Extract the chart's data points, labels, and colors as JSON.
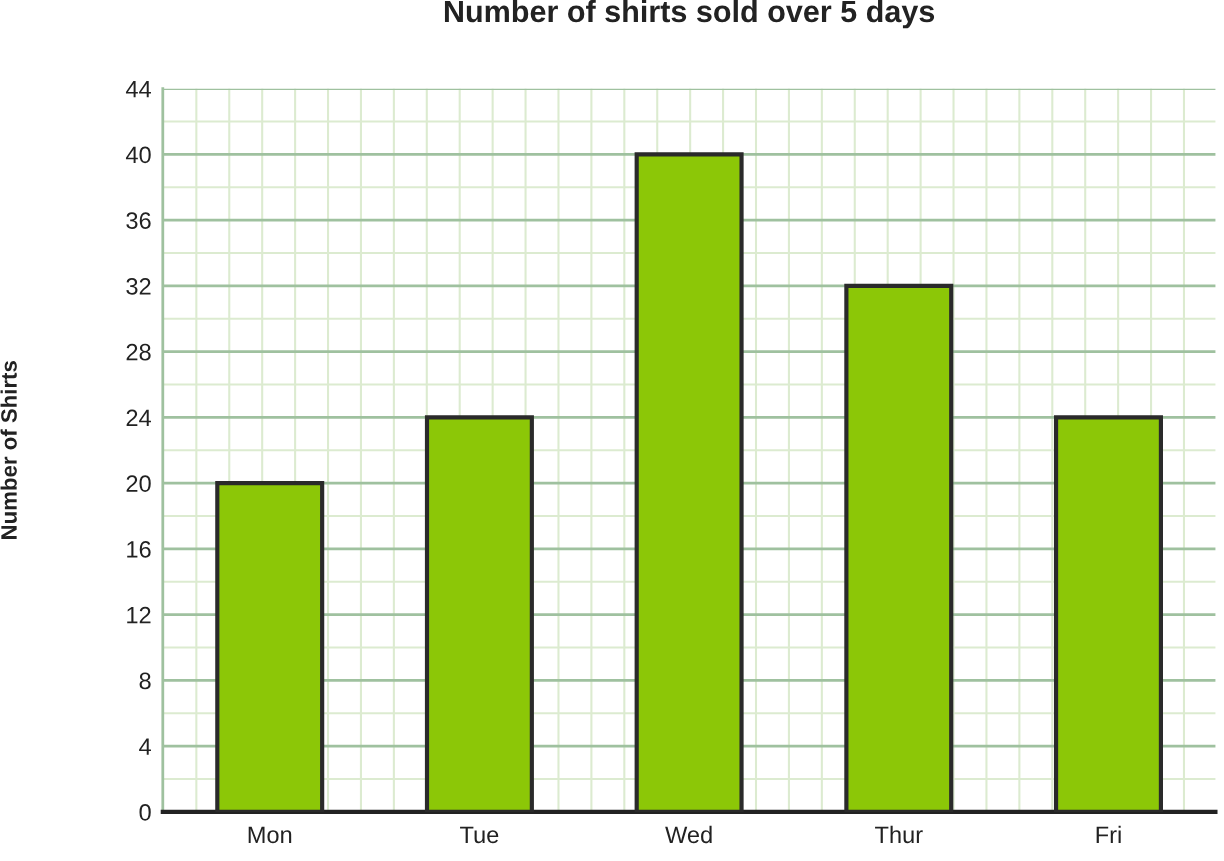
{
  "chart_data": {
    "type": "bar",
    "title": "Number of shirts sold over 5 days",
    "ylabel": "Number of Shirts",
    "categories": [
      "Mon",
      "Tue",
      "Wed",
      "Thur",
      "Fri"
    ],
    "values": [
      20,
      24,
      40,
      32,
      24
    ],
    "color": "#8cc707",
    "ylim": [
      0,
      44
    ],
    "yticks": [
      0,
      4,
      8,
      12,
      16,
      20,
      24,
      28,
      32,
      36,
      40,
      44
    ],
    "grid": true
  }
}
